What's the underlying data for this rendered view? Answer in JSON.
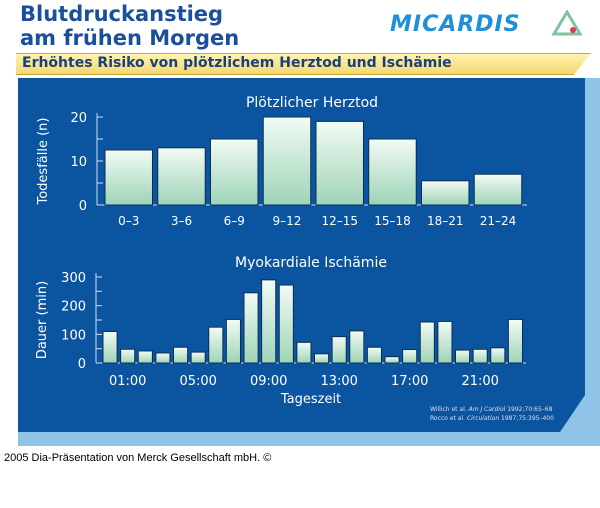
{
  "header": {
    "title_line1": "Blutdruckanstieg",
    "title_line2": "am frühen Morgen",
    "logo": "MICARDIS",
    "logo_icon": "micardis-triangle-icon"
  },
  "banner": "Erhöhtes Risiko von plötzlichem Herztod und Ischämie",
  "colors": {
    "panel": "#0b55a0",
    "bar_top": "#f2fbf4",
    "bar_bottom": "#9ed4b8",
    "banner": "#f4d870",
    "title": "#1a4f9c"
  },
  "chart_data": [
    {
      "type": "bar",
      "title": "Plötzlicher Herztod",
      "ylabel": "Todesfälle (n)",
      "xlabel": "",
      "ylim": [
        0,
        20
      ],
      "yticks": [
        "0",
        "10",
        "20"
      ],
      "categories": [
        "0–3",
        "3–6",
        "6–9",
        "9–12",
        "12–15",
        "15–18",
        "18–21",
        "21–24"
      ],
      "values": [
        12.5,
        13,
        15,
        20,
        19,
        15,
        5.5,
        7
      ]
    },
    {
      "type": "bar",
      "title": "Myokardiale Ischämie",
      "ylabel": "Dauer (min)",
      "xlabel": "Tageszeit",
      "ylim": [
        0,
        300
      ],
      "yticks": [
        "0",
        "100",
        "200",
        "300"
      ],
      "categories": [
        "00:00",
        "01:00",
        "02:00",
        "03:00",
        "04:00",
        "05:00",
        "06:00",
        "07:00",
        "08:00",
        "09:00",
        "10:00",
        "11:00",
        "12:00",
        "13:00",
        "14:00",
        "15:00",
        "16:00",
        "17:00",
        "18:00",
        "19:00",
        "20:00",
        "21:00",
        "22:00",
        "23:00"
      ],
      "xticklabels": [
        "01:00",
        "05:00",
        "09:00",
        "13:00",
        "17:00",
        "21:00"
      ],
      "values": [
        110,
        48,
        42,
        35,
        55,
        38,
        125,
        152,
        245,
        290,
        272,
        72,
        32,
        92,
        112,
        55,
        22,
        47,
        143,
        145,
        45,
        48,
        53,
        152
      ]
    }
  ],
  "references": [
    {
      "authors": "Willich et al.",
      "journal": "Am J Cardiol",
      "rest": " 1992;70:65–68"
    },
    {
      "authors": "Rocco et al.",
      "journal": "Circulation",
      "rest": " 1987;75:395–400"
    }
  ],
  "footer": "2005 Dia-Präsentation von Merck Gesellschaft mbH. ©"
}
